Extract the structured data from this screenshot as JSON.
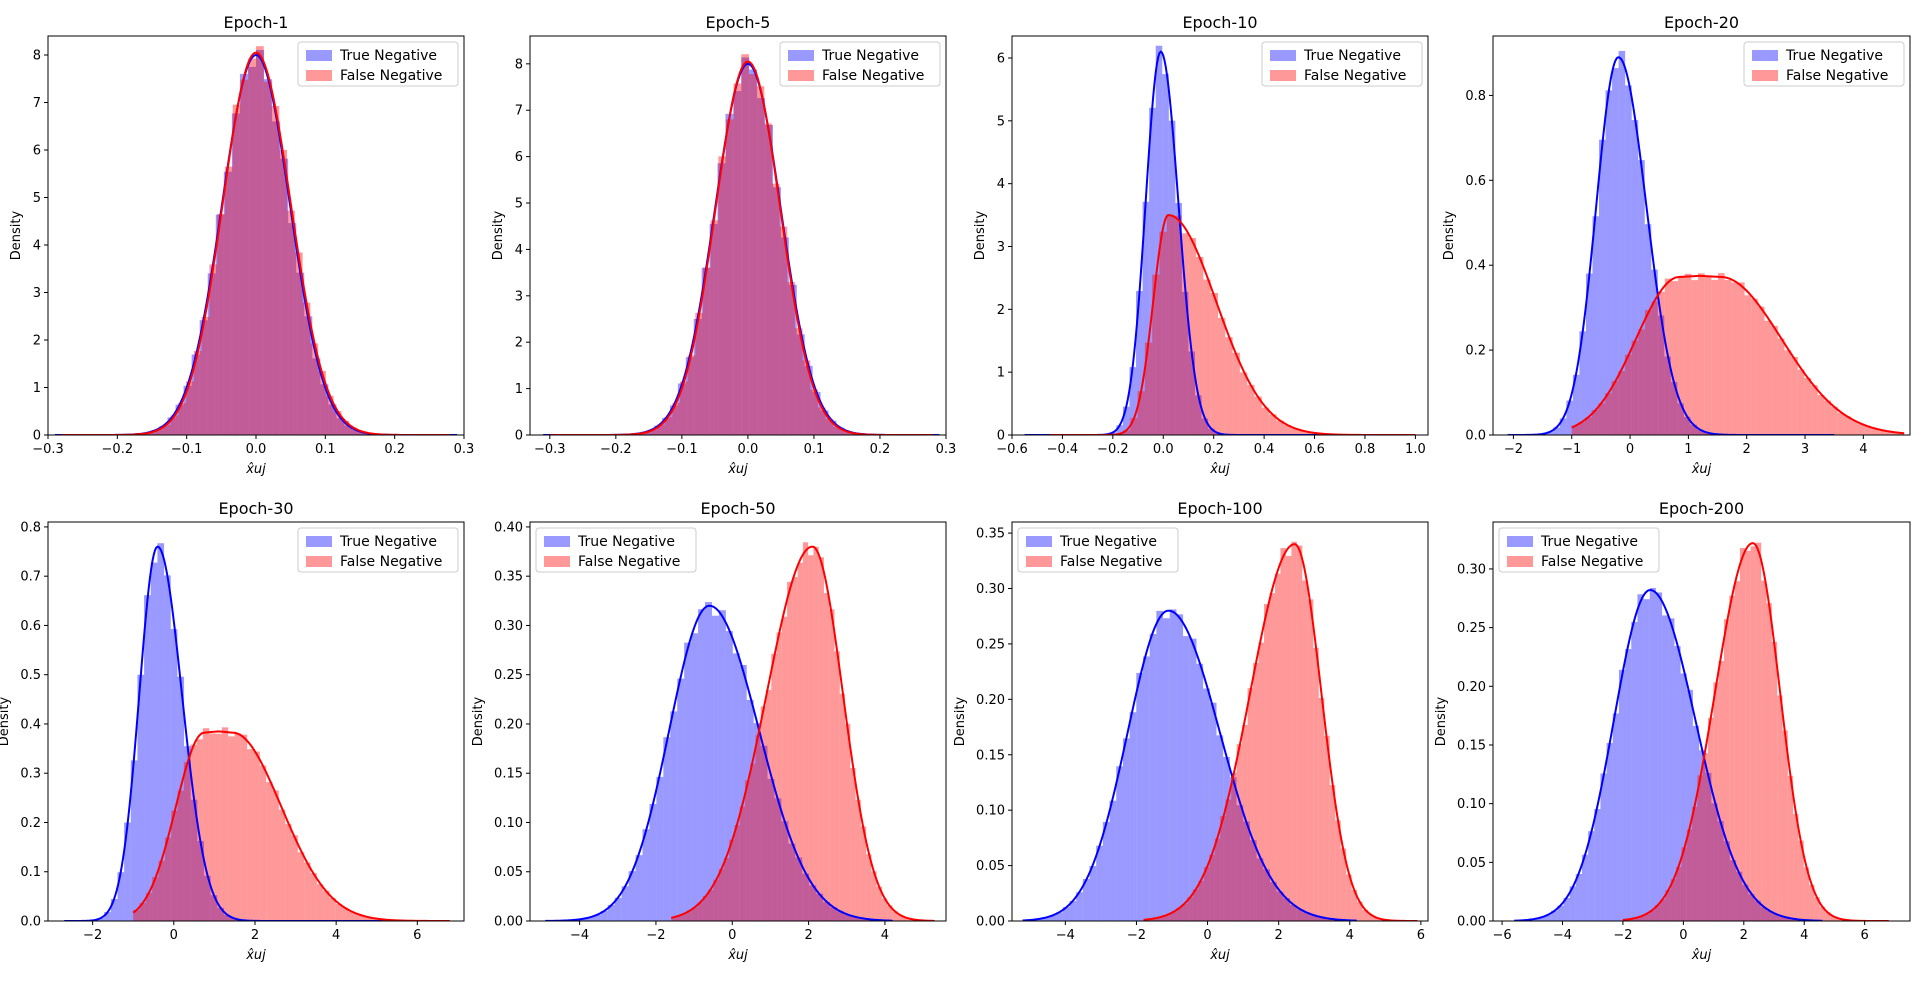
{
  "legend_labels": [
    "True Negative",
    "False Negative"
  ],
  "colors": {
    "tn_fill": "#0000ff",
    "fn_fill": "#ff0000",
    "tn_line": "#0000ff",
    "fn_line": "#ff0000"
  },
  "chart_data": [
    {
      "type": "area",
      "title": "Epoch-1",
      "ylabel": "Density",
      "xlabel": "x̂uj",
      "xlim": [
        -0.3,
        0.3
      ],
      "ylim": [
        0,
        8.4
      ],
      "xticks": [
        -0.3,
        -0.2,
        -0.1,
        0.0,
        0.1,
        0.2,
        0.3
      ],
      "xtick_labels": [
        "−0.3",
        "−0.2",
        "−0.1",
        "0.0",
        "0.1",
        "0.2",
        "0.3"
      ],
      "yticks": [
        0,
        1,
        2,
        3,
        4,
        5,
        6,
        7,
        8
      ],
      "ytick_labels": [
        "0",
        "1",
        "2",
        "3",
        "4",
        "5",
        "6",
        "7",
        "8"
      ],
      "legend_position": "upper right",
      "series": [
        {
          "name": "True Negative",
          "distribution": "skew-normal",
          "peak_x": 0.0,
          "sd_left": 0.049,
          "sd_right": 0.049,
          "peak_density": 8.0,
          "support": [
            -0.29,
            0.29
          ]
        },
        {
          "name": "False Negative",
          "distribution": "skew-normal",
          "peak_x": 0.0,
          "sd_left": 0.048,
          "sd_right": 0.05,
          "peak_density": 8.05,
          "support": [
            -0.28,
            0.28
          ]
        }
      ]
    },
    {
      "type": "area",
      "title": "Epoch-5",
      "ylabel": "Density",
      "xlabel": "x̂uj",
      "xlim": [
        -0.33,
        0.3
      ],
      "ylim": [
        0,
        8.6
      ],
      "xticks": [
        -0.3,
        -0.2,
        -0.1,
        0.0,
        0.1,
        0.2,
        0.3
      ],
      "xtick_labels": [
        "−0.3",
        "−0.2",
        "−0.1",
        "0.0",
        "0.1",
        "0.2",
        "0.3"
      ],
      "yticks": [
        0,
        1,
        2,
        3,
        4,
        5,
        6,
        7,
        8
      ],
      "ytick_labels": [
        "0",
        "1",
        "2",
        "3",
        "4",
        "5",
        "6",
        "7",
        "8"
      ],
      "legend_position": "upper right",
      "series": [
        {
          "name": "True Negative",
          "distribution": "skew-normal",
          "peak_x": 0.0,
          "sd_left": 0.05,
          "sd_right": 0.05,
          "peak_density": 8.0,
          "support": [
            -0.31,
            0.29
          ]
        },
        {
          "name": "False Negative",
          "distribution": "skew-normal",
          "peak_x": 0.0,
          "sd_left": 0.049,
          "sd_right": 0.049,
          "peak_density": 8.05,
          "support": [
            -0.3,
            0.28
          ]
        }
      ]
    },
    {
      "type": "area",
      "title": "Epoch-10",
      "ylabel": "Density",
      "xlabel": "x̂uj",
      "xlim": [
        -0.6,
        1.05
      ],
      "ylim": [
        0,
        6.35
      ],
      "xticks": [
        -0.6,
        -0.4,
        -0.2,
        0.0,
        0.2,
        0.4,
        0.6,
        0.8,
        1.0
      ],
      "xtick_labels": [
        "−0.6",
        "−0.4",
        "−0.2",
        "0.0",
        "0.2",
        "0.4",
        "0.6",
        "0.8",
        "1.0"
      ],
      "yticks": [
        0,
        1,
        2,
        3,
        4,
        5,
        6
      ],
      "ytick_labels": [
        "0",
        "1",
        "2",
        "3",
        "4",
        "5",
        "6"
      ],
      "legend_position": "upper right",
      "series": [
        {
          "name": "True Negative",
          "distribution": "skew-normal",
          "peak_x": -0.01,
          "sd_left": 0.06,
          "sd_right": 0.07,
          "peak_density": 6.1,
          "support": [
            -0.55,
            0.75
          ]
        },
        {
          "name": "False Negative",
          "distribution": "skew-normal",
          "peak_x": 0.02,
          "sd_left": 0.06,
          "sd_right": 0.19,
          "peak_density": 3.5,
          "support": [
            -0.45,
            1.0
          ]
        }
      ]
    },
    {
      "type": "area",
      "title": "Epoch-20",
      "ylabel": "Density",
      "xlabel": "x̂uj",
      "xlim": [
        -2.35,
        4.8
      ],
      "ylim": [
        0,
        0.94
      ],
      "xticks": [
        -2,
        -1,
        0,
        1,
        2,
        3,
        4
      ],
      "xtick_labels": [
        "−2",
        "−1",
        "0",
        "1",
        "2",
        "3",
        "4"
      ],
      "yticks": [
        0,
        0.2,
        0.4,
        0.6,
        0.8
      ],
      "ytick_labels": [
        "0.0",
        "0.2",
        "0.4",
        "0.6",
        "0.8"
      ],
      "legend_position": "upper right",
      "series": [
        {
          "name": "True Negative",
          "distribution": "skew-normal",
          "peak_x": -0.2,
          "sd_left": 0.38,
          "sd_right": 0.48,
          "peak_density": 0.89,
          "support": [
            -2.1,
            3.5
          ]
        },
        {
          "name": "False Negative",
          "distribution": "plateau",
          "peak_x": 1.2,
          "sd_left": 0.75,
          "sd_right": 1.05,
          "peak_density": 0.375,
          "support": [
            -1.0,
            4.7
          ]
        }
      ]
    },
    {
      "type": "area",
      "title": "Epoch-30",
      "ylabel": "Density",
      "xlabel": "x̂uj",
      "xlim": [
        -3.1,
        7.15
      ],
      "ylim": [
        0,
        0.81
      ],
      "xticks": [
        -2,
        0,
        2,
        4,
        6
      ],
      "xtick_labels": [
        "−2",
        "0",
        "2",
        "4",
        "6"
      ],
      "yticks": [
        0,
        0.1,
        0.2,
        0.3,
        0.4,
        0.5,
        0.6,
        0.7,
        0.8
      ],
      "ytick_labels": [
        "0.0",
        "0.1",
        "0.2",
        "0.3",
        "0.4",
        "0.5",
        "0.6",
        "0.7",
        "0.8"
      ],
      "legend_position": "upper right",
      "series": [
        {
          "name": "True Negative",
          "distribution": "skew-normal",
          "peak_x": -0.4,
          "sd_left": 0.45,
          "sd_right": 0.6,
          "peak_density": 0.76,
          "support": [
            -2.7,
            5.5
          ]
        },
        {
          "name": "False Negative",
          "distribution": "plateau",
          "peak_x": 1.1,
          "sd_left": 0.7,
          "sd_right": 1.2,
          "peak_density": 0.385,
          "support": [
            -1.0,
            6.8
          ]
        }
      ]
    },
    {
      "type": "area",
      "title": "Epoch-50",
      "ylabel": "Density",
      "xlabel": "x̂uj",
      "xlim": [
        -5.3,
        5.6
      ],
      "ylim": [
        0,
        0.405
      ],
      "xticks": [
        -4,
        -2,
        0,
        2,
        4
      ],
      "xtick_labels": [
        "−4",
        "−2",
        "0",
        "2",
        "4"
      ],
      "yticks": [
        0,
        0.05,
        0.1,
        0.15,
        0.2,
        0.25,
        0.3,
        0.35,
        0.4
      ],
      "ytick_labels": [
        "0.00",
        "0.05",
        "0.10",
        "0.15",
        "0.20",
        "0.25",
        "0.30",
        "0.35",
        "0.40"
      ],
      "legend_position": "upper left",
      "series": [
        {
          "name": "True Negative",
          "distribution": "skew-normal",
          "peak_x": -0.6,
          "sd_left": 1.05,
          "sd_right": 1.3,
          "peak_density": 0.32,
          "support": [
            -4.9,
            4.2
          ]
        },
        {
          "name": "False Negative",
          "distribution": "skew-normal",
          "peak_x": 2.1,
          "sd_left": 1.2,
          "sd_right": 0.8,
          "peak_density": 0.38,
          "support": [
            -1.6,
            5.3
          ]
        }
      ]
    },
    {
      "type": "area",
      "title": "Epoch-100",
      "ylabel": "Density",
      "xlabel": "x̂uj",
      "xlim": [
        -5.5,
        6.2
      ],
      "ylim": [
        0,
        0.36
      ],
      "xticks": [
        -4,
        -2,
        0,
        2,
        4,
        6
      ],
      "xtick_labels": [
        "−4",
        "−2",
        "0",
        "2",
        "4",
        "6"
      ],
      "yticks": [
        0,
        0.05,
        0.1,
        0.15,
        0.2,
        0.25,
        0.3,
        0.35
      ],
      "ytick_labels": [
        "0.00",
        "0.05",
        "0.10",
        "0.15",
        "0.20",
        "0.25",
        "0.30",
        "0.35"
      ],
      "legend_position": "upper left",
      "series": [
        {
          "name": "True Negative",
          "distribution": "skew-normal",
          "peak_x": -1.1,
          "sd_left": 1.15,
          "sd_right": 1.45,
          "peak_density": 0.28,
          "support": [
            -5.2,
            4.2
          ]
        },
        {
          "name": "False Negative",
          "distribution": "skew-normal",
          "peak_x": 2.45,
          "sd_left": 1.25,
          "sd_right": 0.75,
          "peak_density": 0.34,
          "support": [
            -1.8,
            5.9
          ]
        }
      ]
    },
    {
      "type": "area",
      "title": "Epoch-200",
      "ylabel": "Density",
      "xlabel": "x̂uj",
      "xlim": [
        -6.3,
        7.5
      ],
      "ylim": [
        0,
        0.34
      ],
      "xticks": [
        -6,
        -4,
        -2,
        0,
        2,
        4,
        6
      ],
      "xtick_labels": [
        "−6",
        "−4",
        "−2",
        "0",
        "2",
        "4",
        "6"
      ],
      "yticks": [
        0,
        0.05,
        0.1,
        0.15,
        0.2,
        0.25,
        0.3
      ],
      "ytick_labels": [
        "0.00",
        "0.05",
        "0.10",
        "0.15",
        "0.20",
        "0.25",
        "0.30"
      ],
      "legend_position": "upper left",
      "series": [
        {
          "name": "True Negative",
          "distribution": "skew-normal",
          "peak_x": -1.1,
          "sd_left": 1.2,
          "sd_right": 1.5,
          "peak_density": 0.282,
          "support": [
            -5.6,
            4.6
          ]
        },
        {
          "name": "False Negative",
          "distribution": "skew-normal",
          "peak_x": 2.3,
          "sd_left": 1.25,
          "sd_right": 0.9,
          "peak_density": 0.322,
          "support": [
            -2.0,
            6.8
          ]
        }
      ]
    }
  ]
}
